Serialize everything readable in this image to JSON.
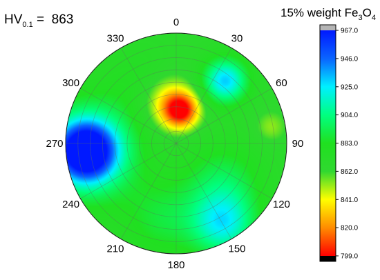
{
  "chart_data": {
    "type": "polar-contour",
    "hv": {
      "prefix": "HV",
      "subscript": "0.1",
      "equals": " =  ",
      "value": "863"
    },
    "title": {
      "prefix": "15% weight Fe",
      "sub1": "3",
      "mid": "O",
      "sub2": "4"
    },
    "angular_ticks": [
      "0",
      "30",
      "60",
      "90",
      "120",
      "150",
      "180",
      "210",
      "240",
      "270",
      "300",
      "330"
    ],
    "colorbar": {
      "min": 799.0,
      "max": 967.0,
      "ticks": [
        "967.0",
        "946.0",
        "925.0",
        "904.0",
        "883.0",
        "862.0",
        "841.0",
        "820.0",
        "799.0"
      ],
      "stops": [
        {
          "value": 967,
          "color": "#0019ff"
        },
        {
          "value": 946,
          "color": "#0a64ff"
        },
        {
          "value": 925,
          "color": "#00f0ff"
        },
        {
          "value": 904,
          "color": "#00ff80"
        },
        {
          "value": 883,
          "color": "#20e020"
        },
        {
          "value": 862,
          "color": "#30d830"
        },
        {
          "value": 841,
          "color": "#ffff00"
        },
        {
          "value": 820,
          "color": "#ff8c00"
        },
        {
          "value": 799,
          "color": "#ff0000"
        }
      ],
      "over_color": "#b4b4b4",
      "under_color": "#000000"
    },
    "background_value": 868,
    "features": [
      {
        "angle": 8,
        "radius": 0.3,
        "value": 806,
        "spread": 0.11
      },
      {
        "angle": 350,
        "radius": 0.38,
        "value": 835,
        "spread": 0.17
      },
      {
        "angle": 265,
        "radius": 0.82,
        "value": 960,
        "spread": 0.17
      },
      {
        "angle": 265,
        "radius": 0.8,
        "value": 925,
        "spread": 0.3
      },
      {
        "angle": 38,
        "radius": 0.72,
        "value": 930,
        "spread": 0.14
      },
      {
        "angle": 80,
        "radius": 0.87,
        "value": 852,
        "spread": 0.1
      },
      {
        "angle": 150,
        "radius": 0.85,
        "value": 918,
        "spread": 0.2
      },
      {
        "angle": 130,
        "radius": 0.55,
        "value": 893,
        "spread": 0.25
      },
      {
        "angle": 190,
        "radius": 0.7,
        "value": 888,
        "spread": 0.25
      },
      {
        "angle": 330,
        "radius": 0.65,
        "value": 878,
        "spread": 0.25
      }
    ]
  }
}
